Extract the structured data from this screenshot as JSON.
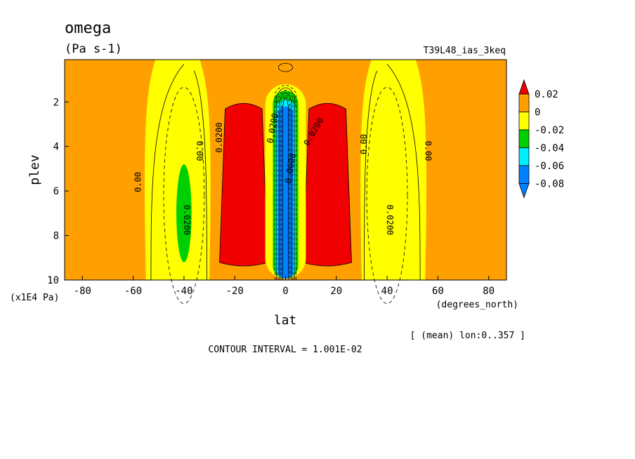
{
  "chart_data": {
    "type": "heatmap",
    "title": "omega",
    "units": "(Pa s-1)",
    "experiment": "T39L48_ias_3keq",
    "xlabel": "lat",
    "ylabel": "plev",
    "x_unit": "(degrees_north)",
    "y_unit": "(x1E4 Pa)",
    "xlim": [
      -87,
      87
    ],
    "ylim": [
      10,
      0.1
    ],
    "y_reversed": true,
    "x_ticks": [
      {
        "value": -80,
        "label": "-80"
      },
      {
        "value": -60,
        "label": "-60"
      },
      {
        "value": -40,
        "label": "-40"
      },
      {
        "value": -20,
        "label": "-20"
      },
      {
        "value": 0,
        "label": "0"
      },
      {
        "value": 20,
        "label": "20"
      },
      {
        "value": 40,
        "label": "40"
      },
      {
        "value": 60,
        "label": "60"
      },
      {
        "value": 80,
        "label": "80"
      }
    ],
    "y_ticks": [
      {
        "value": 2,
        "label": "2"
      },
      {
        "value": 4,
        "label": "4"
      },
      {
        "value": 6,
        "label": "6"
      },
      {
        "value": 8,
        "label": "8"
      },
      {
        "value": 10,
        "label": "10"
      }
    ],
    "mean_note": "[ (mean) lon:0..357 ]",
    "contour_interval": "CONTOUR INTERVAL = 1.001E-02",
    "colorbar": {
      "labels": [
        "0.02",
        "0",
        "-0.02",
        "-0.04",
        "-0.06",
        "-0.08"
      ],
      "bands": [
        {
          "color": "#f00000",
          "range": [
            "0.02",
            "max"
          ]
        },
        {
          "color": "#ffa000",
          "range": [
            "0",
            "0.02"
          ]
        },
        {
          "color": "#ffff00",
          "range": [
            "-0.02",
            "0"
          ]
        },
        {
          "color": "#00d000",
          "range": [
            "-0.04",
            "-0.02"
          ]
        },
        {
          "color": "#00f0ff",
          "range": [
            "-0.06",
            "-0.04"
          ]
        },
        {
          "color": "#0080ff",
          "range": [
            "-0.08",
            "-0.06"
          ]
        }
      ]
    },
    "regions": [
      {
        "name": "polar-subsidence-south",
        "color": "#ffa000",
        "lat": [
          -87,
          -52
        ],
        "plev": [
          0.1,
          10
        ]
      },
      {
        "name": "subtropics-south",
        "color": "#ffff00",
        "lat": [
          -55,
          -30
        ],
        "plev": [
          0.1,
          10
        ]
      },
      {
        "name": "midlat-ascent-south",
        "color": "#00d000",
        "lat": [
          -43,
          -37
        ],
        "plev": [
          4.8,
          9.2
        ]
      },
      {
        "name": "subsidence-south",
        "color": "#f00000",
        "lat": [
          -26,
          -7
        ],
        "plev": [
          2.0,
          9.4
        ]
      },
      {
        "name": "subsidence-north",
        "color": "#f00000",
        "lat": [
          7,
          26
        ],
        "plev": [
          2.0,
          9.4
        ]
      },
      {
        "name": "midlat-ascent-north",
        "color": "#00d000",
        "lat": [
          37,
          43
        ],
        "plev": [
          4.8,
          9.2
        ]
      },
      {
        "name": "subtropics-north",
        "color": "#ffff00",
        "lat": [
          30,
          55
        ],
        "plev": [
          0.1,
          10
        ]
      },
      {
        "name": "polar-subsidence-north",
        "color": "#ffa000",
        "lat": [
          52,
          87
        ],
        "plev": [
          0.1,
          10
        ]
      },
      {
        "name": "itcz-ascent",
        "color": "#0080ff",
        "lat": [
          -3,
          3
        ],
        "plev": [
          2.2,
          9.8
        ]
      }
    ],
    "contour_labels": [
      {
        "text": "0.00",
        "lat": -57,
        "plev": 5.6,
        "angle": -90
      },
      {
        "text": "0.00",
        "lat": -35,
        "plev": 4.2,
        "angle": 90
      },
      {
        "text": "0.0200",
        "lat": -40,
        "plev": 7.3,
        "angle": 90
      },
      {
        "text": "0.0200",
        "lat": -25,
        "plev": 3.6,
        "angle": -90
      },
      {
        "text": "0.00",
        "lat": 32,
        "plev": 3.9,
        "angle": -90
      },
      {
        "text": "0.00",
        "lat": 55,
        "plev": 4.2,
        "angle": 90
      },
      {
        "text": "0.0200",
        "lat": 40,
        "plev": 7.3,
        "angle": 90
      },
      {
        "text": "0.0200",
        "lat": 12,
        "plev": 3.4,
        "angle": -60
      },
      {
        "text": "0.0200",
        "lat": -4,
        "plev": 3.2,
        "angle": -80
      },
      {
        "text": "0.0600",
        "lat": 3,
        "plev": 5.0,
        "angle": -80
      }
    ]
  }
}
